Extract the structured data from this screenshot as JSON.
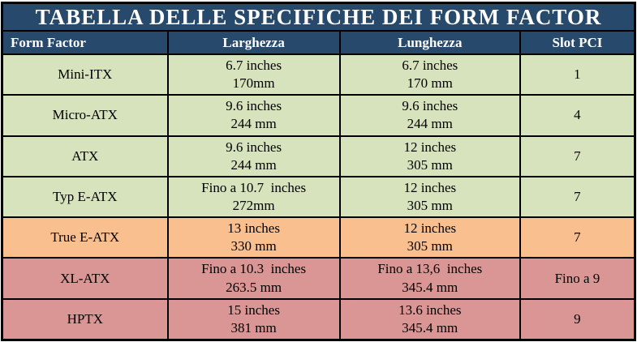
{
  "title": "TABELLA DELLE SPECIFICHE DEI FORM FACTOR",
  "columns": [
    "Form Factor",
    "Larghezza",
    "Lunghezza",
    "Slot PCI"
  ],
  "colors": {
    "title_bg": "#27496B",
    "header_bg": "#27496B",
    "header_text": "#FFFFFF",
    "band_green": "#D6E3BC",
    "band_orange": "#FABF8F",
    "band_pink": "#D99694",
    "border": "#000000",
    "cell_text": "#000000"
  },
  "rows": [
    {
      "band": "green",
      "form_factor": "Mini-ITX",
      "larghezza_l1": "6.7 inches",
      "larghezza_l2": "170mm",
      "lunghezza_l1": "6.7 inches",
      "lunghezza_l2": "170 mm",
      "slot_pci": "1"
    },
    {
      "band": "green",
      "form_factor": "Micro-ATX",
      "larghezza_l1": "9.6 inches",
      "larghezza_l2": "244 mm",
      "lunghezza_l1": "9.6 inches",
      "lunghezza_l2": "244 mm",
      "slot_pci": "4"
    },
    {
      "band": "green",
      "form_factor": "ATX",
      "larghezza_l1": "9.6 inches",
      "larghezza_l2": "244 mm",
      "lunghezza_l1": "12 inches",
      "lunghezza_l2": "305 mm",
      "slot_pci": "7"
    },
    {
      "band": "green",
      "form_factor": "Typ E-ATX",
      "larghezza_l1": "Fino a 10.7  inches",
      "larghezza_l2": "272mm",
      "lunghezza_l1": "12 inches",
      "lunghezza_l2": "305 mm",
      "slot_pci": "7"
    },
    {
      "band": "orange",
      "form_factor": "True E-ATX",
      "larghezza_l1": "13 inches",
      "larghezza_l2": "330 mm",
      "lunghezza_l1": "12 inches",
      "lunghezza_l2": "305 mm",
      "slot_pci": "7"
    },
    {
      "band": "pink",
      "form_factor": "XL-ATX",
      "larghezza_l1": "Fino a 10.3  inches",
      "larghezza_l2": "263.5 mm",
      "lunghezza_l1": "Fino a 13,6  inches",
      "lunghezza_l2": "345.4 mm",
      "slot_pci": "Fino a 9"
    },
    {
      "band": "pink",
      "form_factor": "HPTX",
      "larghezza_l1": "15 inches",
      "larghezza_l2": "381 mm",
      "lunghezza_l1": "13.6 inches",
      "lunghezza_l2": "345.4 mm",
      "slot_pci": "9"
    }
  ]
}
